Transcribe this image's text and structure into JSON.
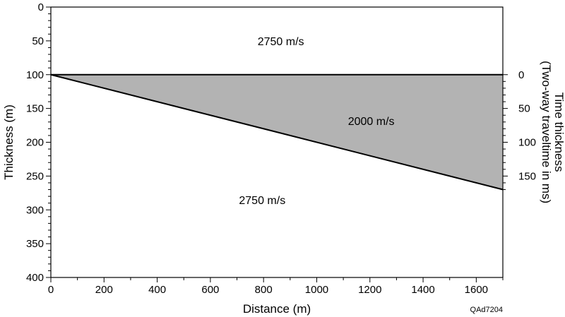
{
  "chart_data": {
    "type": "diagram",
    "x_axis": {
      "label": "Distance (m)",
      "range": [
        0,
        1700
      ],
      "major_ticks": [
        0,
        200,
        400,
        600,
        800,
        1000,
        1200,
        1400,
        1600
      ],
      "tick_labels": [
        "0",
        "200",
        "400",
        "600",
        "800",
        "1000",
        "1200",
        "1400",
        "1600"
      ],
      "minor_step": 100
    },
    "y_axis_left": {
      "label": "Thickness (m)",
      "range": [
        0,
        400
      ],
      "inverted": true,
      "major_ticks": [
        0,
        50,
        100,
        150,
        200,
        250,
        300,
        350,
        400
      ],
      "tick_labels": [
        "0",
        "50",
        "100",
        "150",
        "200",
        "250",
        "300",
        "350",
        "400"
      ],
      "minor_step": 10
    },
    "y_axis_right": {
      "label_line1": "Time thickness",
      "label_line2": "(Two-way traveltime in ms)",
      "major_ticks": [
        0,
        50,
        100,
        150
      ],
      "tick_labels": [
        "0",
        "50",
        "100",
        "150"
      ],
      "minor_step": 10,
      "max_tick": 170,
      "zero_at_thickness": 100,
      "velocity_m_per_s": 2000
    },
    "layers": [
      {
        "label": "2750 m/s",
        "velocity": 2750,
        "position": "upper"
      },
      {
        "label": "2000 m/s",
        "velocity": 2000,
        "position": "wedge"
      },
      {
        "label": "2750 m/s",
        "velocity": 2750,
        "position": "lower"
      }
    ],
    "wedge": {
      "top_depth": 100,
      "apex_distance": 0,
      "base_line": [
        {
          "x": 0,
          "y": 100
        },
        {
          "x": 1700,
          "y": 270
        }
      ],
      "fill_color": "#b3b3b3"
    },
    "grid": false
  },
  "figure_id": "QAd7204"
}
